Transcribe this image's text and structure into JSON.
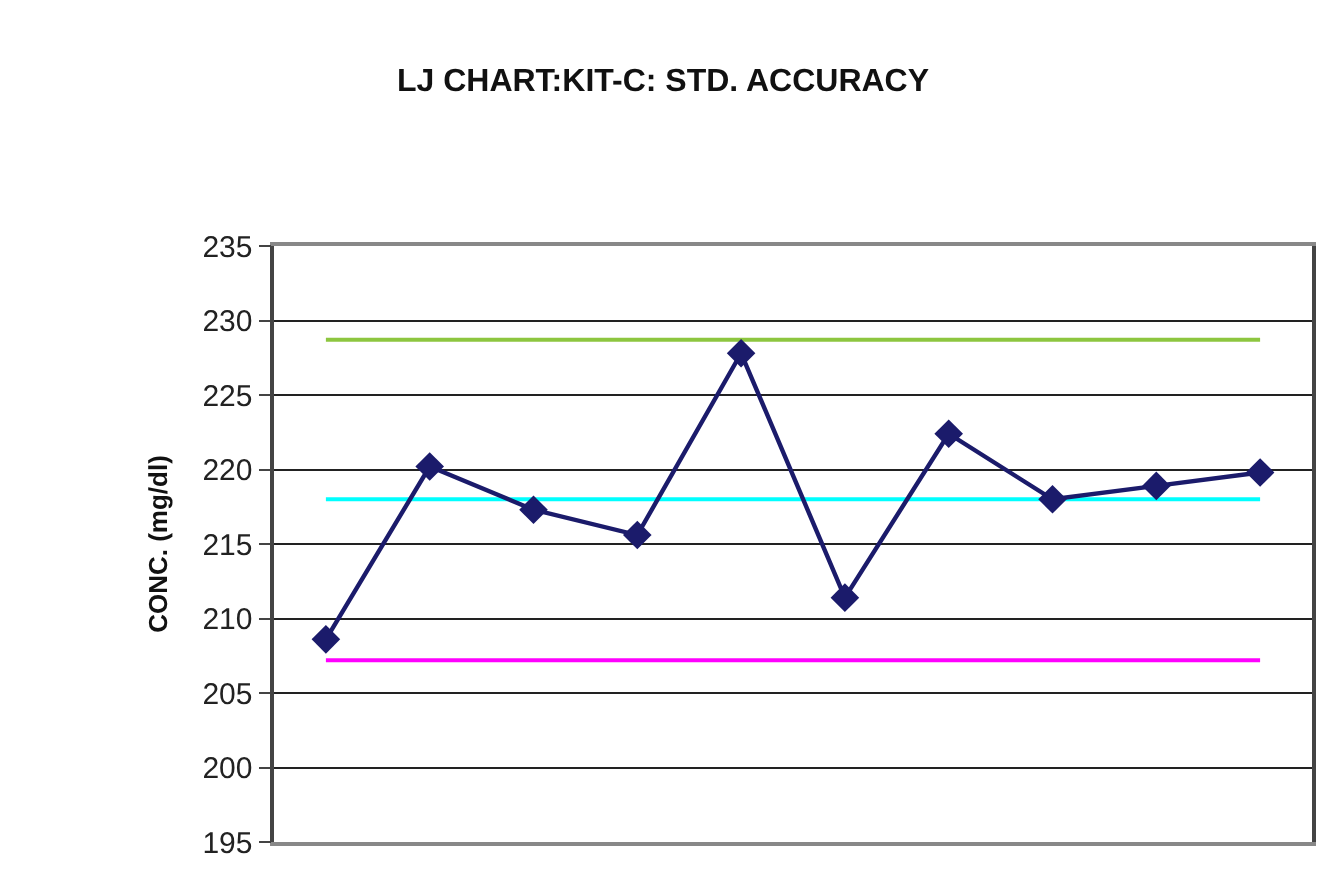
{
  "chart_data": {
    "type": "line",
    "title": "LJ CHART:KIT-C: STD. ACCURACY",
    "ylabel": "CONC. (mg/dl)",
    "categories": [
      null,
      null,
      null,
      null,
      null,
      null,
      null,
      null,
      null,
      null
    ],
    "series": [
      {
        "color": "#1b1b6b",
        "values": [
          208.6,
          220.2,
          217.3,
          215.6,
          227.8,
          211.4,
          222.4,
          218.0,
          218.9,
          219.8
        ]
      }
    ],
    "ylim": [
      195,
      235
    ],
    "yticks": [
      195,
      200,
      205,
      210,
      215,
      220,
      225,
      230,
      235
    ],
    "grid": "y",
    "marker": "diamond",
    "line_style": "solid",
    "tick_labels": "y",
    "ref_lines": [
      {
        "axis": "y",
        "value": 228.7,
        "color": "#8dc63f"
      },
      {
        "axis": "y",
        "value": 218.0,
        "color": "#00ffff"
      },
      {
        "axis": "y",
        "value": 207.2,
        "color": "#ff00ff"
      }
    ]
  }
}
